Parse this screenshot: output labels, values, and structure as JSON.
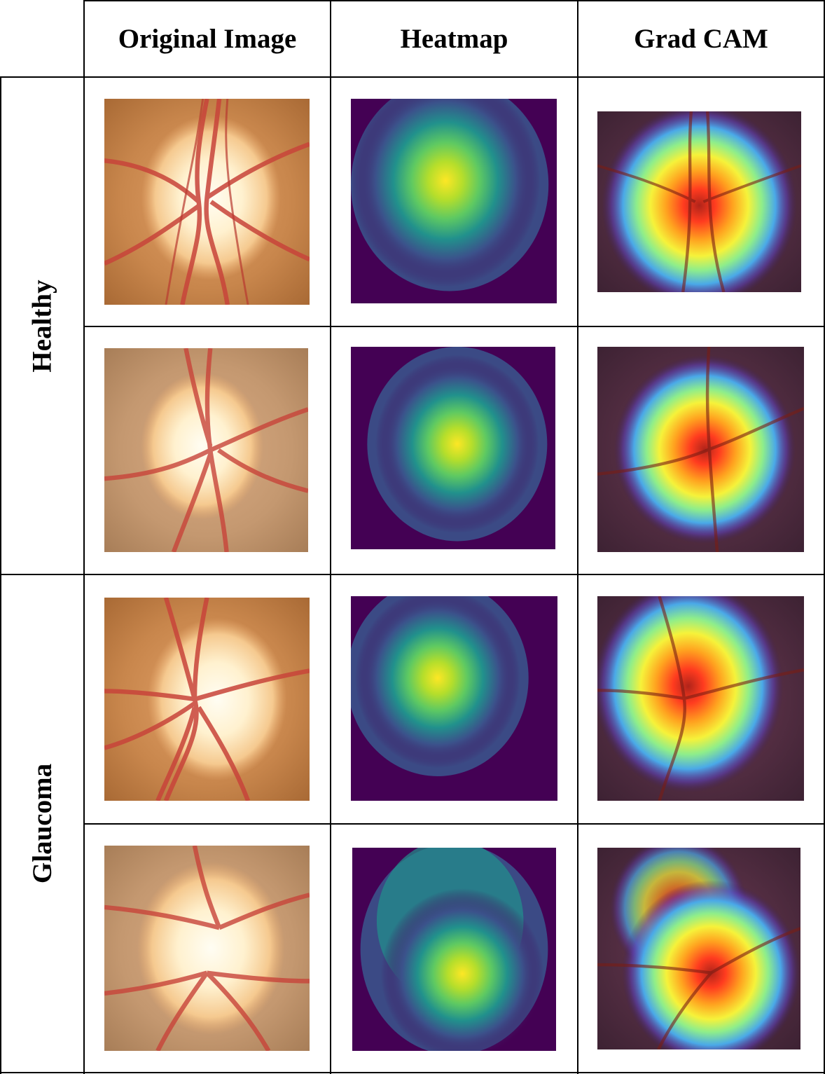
{
  "columns": {
    "original": "Original Image",
    "heatmap": "Heatmap",
    "gradcam": "Grad CAM"
  },
  "groups": {
    "healthy": "Healthy",
    "glaucoma": "Glaucoma"
  },
  "colors": {
    "grid_line": "#000000",
    "fundus_background": "#c98a4b",
    "optic_disc": "#fff3d6",
    "vessel": "#c8443a",
    "heatmap_low": "#440154",
    "heatmap_mid": "#21918c",
    "heatmap_high": "#fde725"
  }
}
